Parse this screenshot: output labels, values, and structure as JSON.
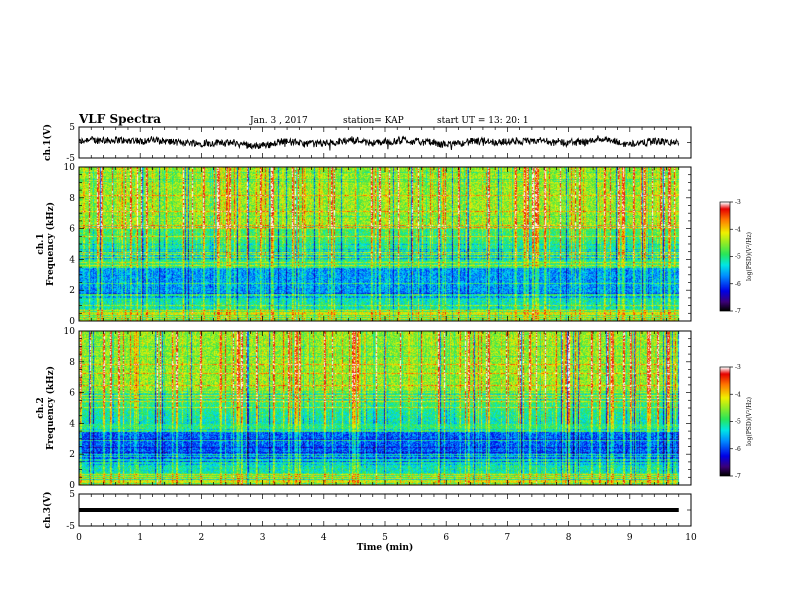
{
  "header": {
    "title": "VLF Spectra",
    "date": "Jan. 3 , 2017",
    "station": "station= KAP",
    "start": "start UT = 13: 20: 1"
  },
  "chart_data": [
    {
      "type": "line",
      "name": "ch1-voltage",
      "ylabel": "ch.1(V)",
      "ylim": [
        -5,
        5
      ],
      "ytick_labels": [
        "5",
        "-5"
      ],
      "xlim": [
        0,
        10
      ],
      "trace_baseline": 0,
      "trace_amplitude": 2.5,
      "trace_end": 9.8
    },
    {
      "type": "heatmap",
      "name": "ch1-spectrogram",
      "ylabel": "ch.1\nFrequency (kHz)",
      "ylim": [
        0,
        10
      ],
      "ytick_labels": [
        "0",
        "2",
        "4",
        "6",
        "8",
        "10"
      ],
      "xlim": [
        0,
        10
      ],
      "colorbar": {
        "label": "log(PSD)(V²/Hz)",
        "range": [
          -7,
          -3
        ],
        "tick_labels": [
          "-3",
          "-4",
          "-5",
          "-6",
          "-7"
        ]
      }
    },
    {
      "type": "heatmap",
      "name": "ch2-spectrogram",
      "ylabel": "ch.2\nFrequency (kHz)",
      "ylim": [
        0,
        10
      ],
      "ytick_labels": [
        "0",
        "2",
        "4",
        "6",
        "8",
        "10"
      ],
      "xlim": [
        0,
        10
      ],
      "colorbar": {
        "label": "log(PSD)(V²/Hz)",
        "range": [
          -7,
          -3
        ],
        "tick_labels": [
          "-3",
          "-4",
          "-5",
          "-6",
          "-7"
        ]
      }
    },
    {
      "type": "line",
      "name": "ch3-voltage",
      "ylabel": "ch.3(V)",
      "ylim": [
        -5,
        5
      ],
      "ytick_labels": [
        "5",
        "-5"
      ],
      "xlim": [
        0,
        10
      ],
      "trace_level": 0,
      "trace_end": 9.8
    }
  ],
  "x_axis": {
    "label": "Time (min)",
    "tick_labels": [
      "0",
      "1",
      "2",
      "3",
      "4",
      "5",
      "6",
      "7",
      "8",
      "9",
      "10"
    ]
  }
}
